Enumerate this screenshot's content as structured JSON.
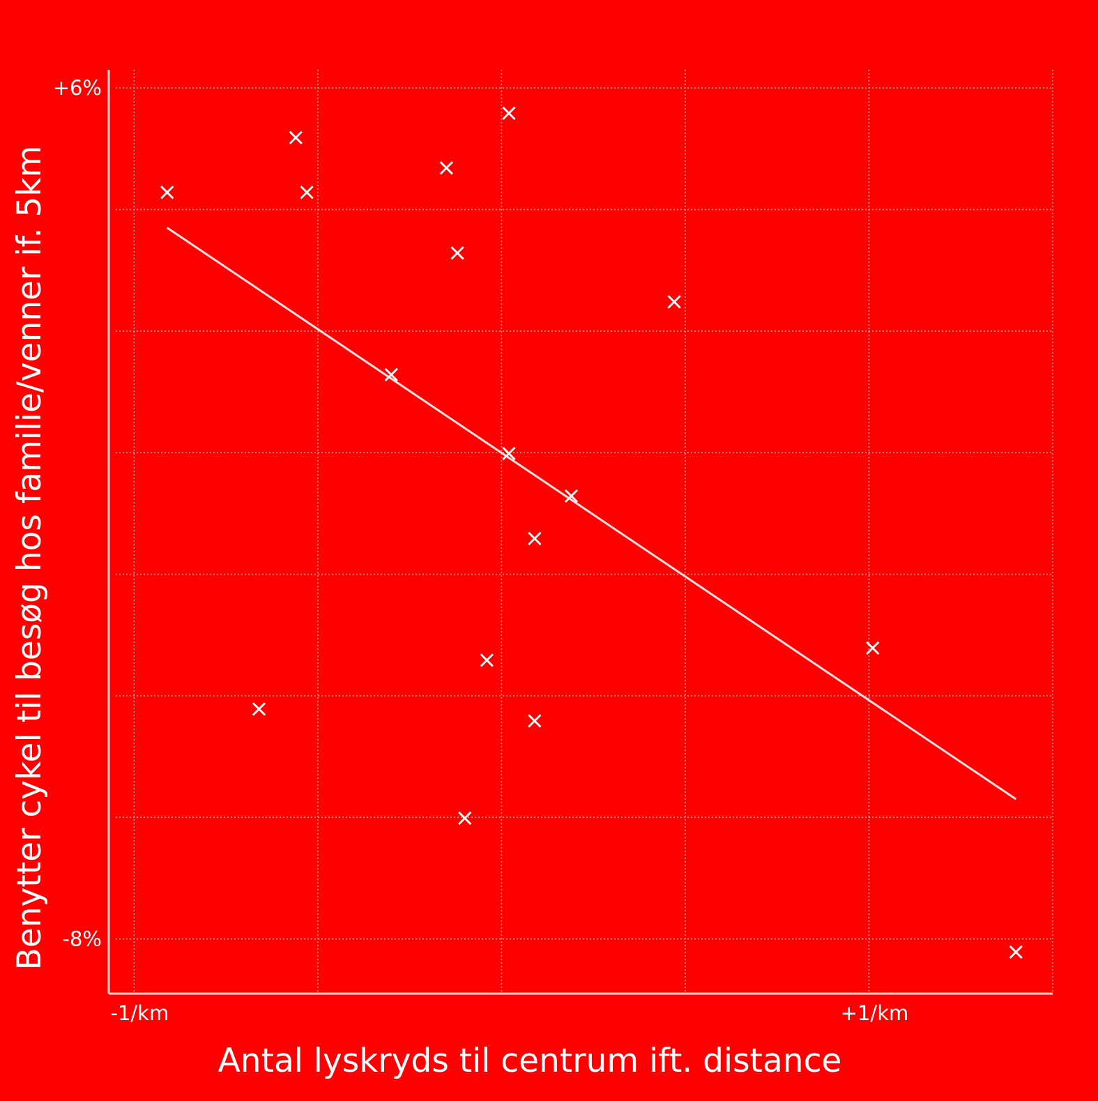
{
  "chart_data": {
    "type": "scatter",
    "title": "",
    "xlabel": "Antal lyskryds til centrum ift. distance",
    "ylabel": "Benytter cykel til besøg hos familie/venner if. 5km",
    "xlim": [
      -1.05,
      1.5
    ],
    "ylim": [
      -8.9,
      6.3
    ],
    "x_ticks": [
      {
        "value": -1,
        "label": "-1/km"
      },
      {
        "value": 1,
        "label": "+1/km"
      }
    ],
    "y_ticks": [
      {
        "value": 6,
        "label": "+6%"
      },
      {
        "value": -8,
        "label": "-8%"
      }
    ],
    "grid": true,
    "marker": "x",
    "points": [
      {
        "x": -0.91,
        "y": 4.3
      },
      {
        "x": -0.56,
        "y": 5.2
      },
      {
        "x": -0.53,
        "y": 4.3
      },
      {
        "x": -0.66,
        "y": -4.2
      },
      {
        "x": -0.3,
        "y": 1.3
      },
      {
        "x": -0.15,
        "y": 4.7
      },
      {
        "x": -0.12,
        "y": 3.3
      },
      {
        "x": 0.02,
        "y": 5.6
      },
      {
        "x": 0.02,
        "y": 0.0
      },
      {
        "x": -0.04,
        "y": -3.4
      },
      {
        "x": -0.1,
        "y": -6.0
      },
      {
        "x": 0.09,
        "y": -1.4
      },
      {
        "x": 0.09,
        "y": -4.4
      },
      {
        "x": 0.19,
        "y": -0.7
      },
      {
        "x": 0.47,
        "y": 2.5
      },
      {
        "x": 1.01,
        "y": -3.2
      },
      {
        "x": 1.4,
        "y": -8.2
      }
    ],
    "trendline": {
      "x": [
        -0.91,
        1.4
      ],
      "y": [
        3.7,
        -5.7
      ]
    }
  }
}
